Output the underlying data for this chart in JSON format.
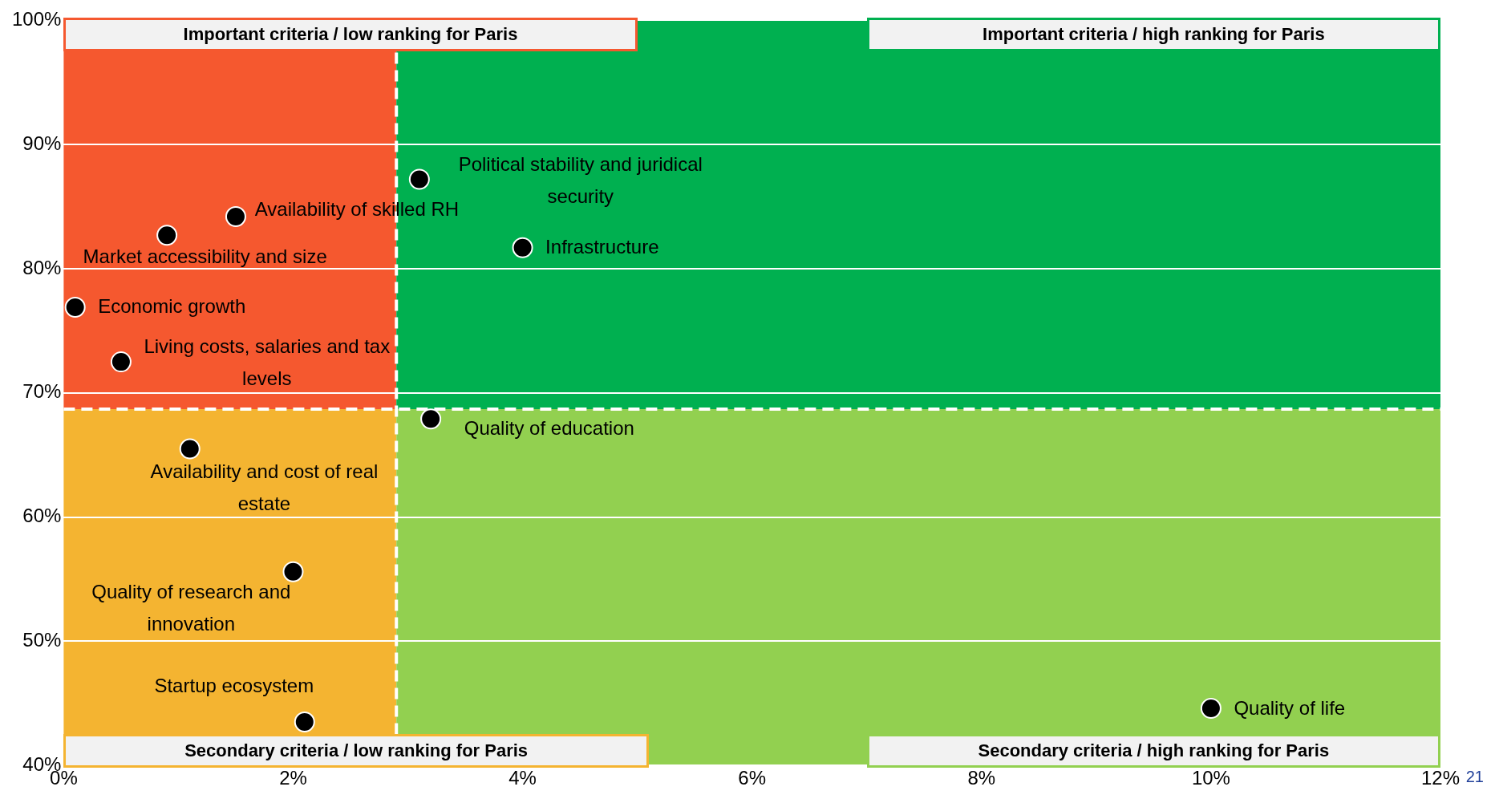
{
  "chart_data": {
    "type": "scatter",
    "xlim": [
      0,
      12
    ],
    "ylim": [
      40,
      100
    ],
    "xticks": [
      {
        "value": 0,
        "label": "0%"
      },
      {
        "value": 2,
        "label": "2%"
      },
      {
        "value": 4,
        "label": "4%"
      },
      {
        "value": 6,
        "label": "6%"
      },
      {
        "value": 8,
        "label": "8%"
      },
      {
        "value": 10,
        "label": "10%"
      },
      {
        "value": 12,
        "label": "12%"
      }
    ],
    "yticks": [
      {
        "value": 40,
        "label": "40%"
      },
      {
        "value": 50,
        "label": "50%"
      },
      {
        "value": 60,
        "label": "60%"
      },
      {
        "value": 70,
        "label": "70%"
      },
      {
        "value": 80,
        "label": "80%"
      },
      {
        "value": 90,
        "label": "90%"
      },
      {
        "value": 100,
        "label": "100%"
      }
    ],
    "grid": "y",
    "legend": false,
    "marker": "circle",
    "series": [
      {
        "name": "Market accessibility and size",
        "color": "#000000",
        "x": [
          0.9
        ],
        "values": [
          82.7
        ]
      },
      {
        "name": "Availability of skilled RH",
        "color": "#000000",
        "x": [
          1.5
        ],
        "values": [
          84.2
        ]
      },
      {
        "name": "Economic growth",
        "color": "#000000",
        "x": [
          0.1
        ],
        "values": [
          76.9
        ]
      },
      {
        "name": "Living costs, salaries and tax levels",
        "color": "#000000",
        "x": [
          0.5
        ],
        "values": [
          72.5
        ]
      },
      {
        "name": "Political stability and juridical security",
        "color": "#000000",
        "x": [
          3.1
        ],
        "values": [
          87.2
        ]
      },
      {
        "name": "Infrastructure",
        "color": "#000000",
        "x": [
          4.0
        ],
        "values": [
          81.7
        ]
      },
      {
        "name": "Quality of education",
        "color": "#000000",
        "x": [
          3.2
        ],
        "values": [
          67.9
        ]
      },
      {
        "name": "Availability and cost of real estate",
        "color": "#000000",
        "x": [
          1.1
        ],
        "values": [
          65.5
        ]
      },
      {
        "name": "Quality of research and innovation",
        "color": "#000000",
        "x": [
          2.0
        ],
        "values": [
          55.6
        ]
      },
      {
        "name": "Startup ecosystem",
        "color": "#000000",
        "x": [
          2.1
        ],
        "values": [
          43.5
        ]
      },
      {
        "name": "Quality of life",
        "color": "#000000",
        "x": [
          10.0
        ],
        "values": [
          44.6
        ]
      }
    ],
    "ref_lines": [
      {
        "axis": "x",
        "value": 2.9,
        "color": "#ffffff",
        "line_style": "dashed"
      },
      {
        "axis": "y",
        "value": 68.7,
        "color": "#ffffff",
        "line_style": "dashed"
      }
    ],
    "bands": [
      {
        "axis": "x",
        "from": 0,
        "to": 2.9,
        "color": "#f5582f"
      },
      {
        "axis": "x",
        "from": 2.9,
        "to": 12,
        "color": "#00b050"
      },
      {
        "axis": "x",
        "from": 0,
        "to": 2.9,
        "color": "#f4b431"
      },
      {
        "axis": "x",
        "from": 2.9,
        "to": 12,
        "color": "#92d050"
      }
    ],
    "annotations": [
      "Important criteria / low ranking for Paris",
      "Important criteria / high ranking for Paris",
      "Secondary criteria / low ranking for Paris",
      "Secondary criteria / high ranking for Paris",
      "21"
    ]
  }
}
